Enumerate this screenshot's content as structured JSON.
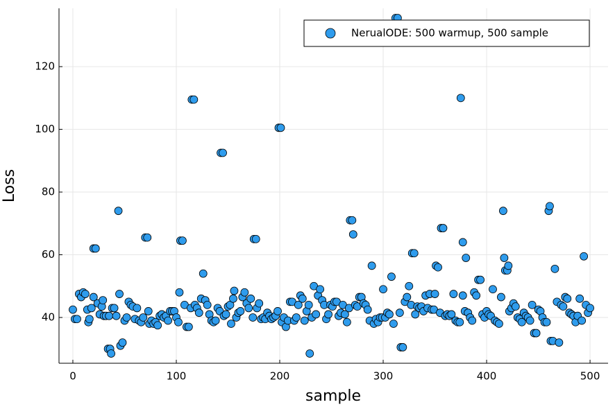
{
  "chart_data": {
    "type": "scatter",
    "xlabel": "sample",
    "ylabel": "Loss",
    "xlim": [
      -13.4,
      517.4
    ],
    "ylim": [
      25.4,
      138.6
    ],
    "xticks": [
      0,
      100,
      200,
      300,
      400,
      500
    ],
    "yticks": [
      40,
      60,
      80,
      100,
      120
    ],
    "grid": true,
    "legend": "top-right",
    "x": [
      0,
      2,
      4,
      6,
      8,
      10,
      12,
      14,
      15,
      16,
      18,
      20,
      20,
      22,
      24,
      26,
      28,
      29,
      30,
      32,
      34,
      35,
      36,
      37,
      38,
      40,
      42,
      44,
      45,
      46,
      48,
      50,
      52,
      54,
      56,
      58,
      60,
      62,
      64,
      66,
      68,
      70,
      72,
      73,
      74,
      76,
      78,
      80,
      82,
      84,
      86,
      88,
      90,
      92,
      94,
      96,
      98,
      100,
      102,
      103,
      104,
      106,
      108,
      110,
      112,
      114,
      115,
      117,
      118,
      120,
      122,
      124,
      126,
      128,
      130,
      132,
      134,
      136,
      138,
      140,
      142,
      143,
      145,
      146,
      148,
      150,
      152,
      153,
      155,
      156,
      158,
      160,
      162,
      164,
      166,
      168,
      170,
      172,
      174,
      175,
      177,
      178,
      180,
      182,
      184,
      186,
      188,
      190,
      192,
      194,
      196,
      198,
      199,
      201,
      202,
      204,
      206,
      208,
      210,
      212,
      214,
      216,
      218,
      220,
      222,
      224,
      226,
      228,
      229,
      231,
      233,
      235,
      237,
      239,
      241,
      243,
      245,
      247,
      249,
      251,
      253,
      255,
      257,
      259,
      261,
      263,
      265,
      267,
      268,
      270,
      271,
      273,
      275,
      277,
      279,
      281,
      283,
      285,
      287,
      289,
      291,
      293,
      295,
      297,
      299,
      300,
      302,
      304,
      306,
      308,
      310,
      312,
      314,
      316,
      317,
      319,
      321,
      323,
      325,
      327,
      328,
      330,
      331,
      333,
      335,
      337,
      339,
      341,
      343,
      345,
      347,
      349,
      350,
      351,
      353,
      355,
      356,
      358,
      360,
      362,
      364,
      366,
      368,
      370,
      372,
      374,
      375,
      377,
      377,
      379,
      380,
      382,
      384,
      386,
      388,
      390,
      392,
      394,
      396,
      398,
      400,
      402,
      404,
      406,
      408,
      410,
      412,
      414,
      416,
      417,
      418,
      420,
      421,
      422,
      424,
      426,
      428,
      430,
      432,
      434,
      436,
      438,
      440,
      442,
      444,
      446,
      448,
      450,
      452,
      454,
      456,
      458,
      460,
      461,
      462,
      464,
      466,
      468,
      470,
      472,
      474,
      476,
      478,
      480,
      482,
      484,
      486,
      488,
      490,
      492,
      494,
      496,
      498,
      500
    ],
    "series": [
      {
        "name": "NerualODE: 500 warmup, 500 sample",
        "color": "#2f9ced",
        "values": [
          42.5,
          39.5,
          39.5,
          47.5,
          46.5,
          48,
          47.5,
          42.5,
          38.5,
          39.5,
          43,
          46.5,
          62,
          62,
          44.5,
          41,
          43.5,
          45.5,
          40.5,
          40.5,
          30,
          40.5,
          30,
          28.5,
          43,
          43,
          40.5,
          74,
          47.5,
          31,
          32,
          39,
          40,
          45,
          44,
          43.5,
          39.5,
          43,
          39,
          38.5,
          40,
          65.5,
          65.5,
          42,
          38,
          39,
          38,
          38.5,
          37.5,
          40.5,
          41,
          40,
          40.5,
          39,
          42,
          42,
          42,
          40,
          38.5,
          48,
          64.5,
          64.5,
          44,
          37,
          37,
          43,
          109.5,
          109.5,
          44,
          43,
          41.5,
          46,
          54,
          45.5,
          44,
          41,
          39,
          38.5,
          39,
          43,
          42,
          92.5,
          92.5,
          40.5,
          41,
          43.5,
          44,
          38,
          46,
          48.5,
          40,
          41.5,
          42,
          46.5,
          48,
          44.5,
          43,
          46,
          40,
          65,
          65,
          43,
          44.5,
          39.5,
          40,
          39.5,
          41.5,
          40.5,
          39.5,
          40,
          40.5,
          42,
          100.5,
          100.5,
          38.5,
          40,
          37,
          39,
          45,
          45,
          39,
          40,
          44,
          47,
          46,
          39,
          42,
          44,
          28.5,
          40,
          50,
          41,
          47,
          49,
          45.5,
          44,
          39.5,
          41,
          44,
          43.5,
          45,
          45,
          40.5,
          41.5,
          44,
          41,
          38.5,
          43,
          71,
          71,
          66.5,
          44,
          43.5,
          46.5,
          46.5,
          44.5,
          44,
          42.5,
          39,
          56.5,
          38,
          39.5,
          38.5,
          40,
          40,
          49,
          40,
          41.5,
          41,
          53,
          38,
          135.5,
          135.5,
          41.5,
          30.5,
          30.5,
          45,
          46.5,
          50,
          44,
          60.5,
          60.5,
          41,
          43.5,
          43,
          43.5,
          42,
          47,
          43,
          47.5,
          42.5,
          42.5,
          47.5,
          56.5,
          56,
          41.5,
          68.5,
          68.5,
          40.5,
          41,
          40.5,
          41,
          47.5,
          39,
          38.5,
          38.5,
          110,
          47,
          64,
          42,
          59,
          41.5,
          40,
          39,
          48,
          47,
          52,
          52,
          41,
          40,
          42,
          41,
          40.5,
          49,
          39,
          38.5,
          38,
          46.5,
          74,
          59,
          55,
          55,
          56.5,
          42,
          43,
          44.5,
          43.5,
          40,
          39.5,
          38.5,
          41.5,
          40.5,
          40,
          39,
          44,
          35,
          35,
          42.5,
          42,
          40,
          38.5,
          38.5,
          74,
          75.5,
          32.5,
          32.5,
          55.5,
          45,
          32,
          44,
          43.5,
          46.5,
          46,
          41.5,
          41,
          40.5,
          38.5,
          40.5,
          46,
          39,
          59.5,
          44,
          41.5,
          43
        ]
      }
    ]
  }
}
